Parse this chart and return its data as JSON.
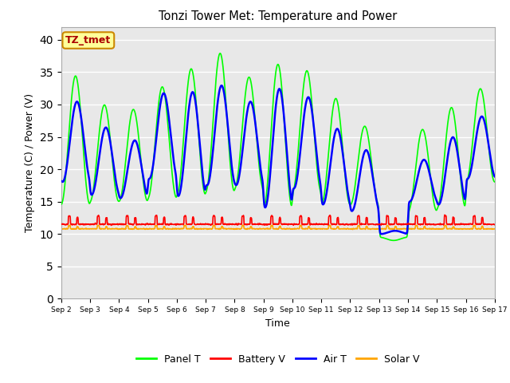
{
  "title": "Tonzi Tower Met: Temperature and Power",
  "xlabel": "Time",
  "ylabel": "Temperature (C) / Power (V)",
  "xlim_start": 0,
  "xlim_end": 15,
  "ylim": [
    0,
    42
  ],
  "yticks": [
    0,
    5,
    10,
    15,
    20,
    25,
    30,
    35,
    40
  ],
  "xtick_labels": [
    "Sep 2",
    "Sep 3",
    "Sep 4",
    "Sep 5",
    "Sep 6",
    "Sep 7",
    "Sep 8",
    "Sep 9",
    "Sep 10",
    "Sep 11",
    "Sep 12",
    "Sep 13",
    "Sep 14",
    "Sep 15",
    "Sep 16",
    "Sep 17"
  ],
  "panel_t_color": "#00FF00",
  "battery_v_color": "#FF0000",
  "air_t_color": "#0000FF",
  "solar_v_color": "#FFA500",
  "bg_color": "#E8E8E8",
  "annotation_text": "TZ_tmet",
  "annotation_fg": "#AA0000",
  "annotation_bg": "#FFFF99",
  "annotation_border": "#CC8800",
  "legend_entries": [
    "Panel T",
    "Battery V",
    "Air T",
    "Solar V"
  ],
  "grid_color": "#FFFFFF",
  "panel_t_linewidth": 1.2,
  "air_t_linewidth": 1.8,
  "battery_v_linewidth": 1.2,
  "solar_v_linewidth": 1.2,
  "panel_t_peaks": [
    34.5,
    30.0,
    29.3,
    32.8,
    35.6,
    38.0,
    34.3,
    36.3,
    35.3,
    31.0,
    26.7,
    9.0,
    26.2,
    29.6,
    32.5
  ],
  "panel_t_troughs": [
    14.5,
    15.0,
    15.0,
    15.5,
    16.0,
    16.5,
    17.0,
    14.0,
    16.5,
    14.5,
    14.5,
    9.5,
    13.5,
    14.0,
    18.0
  ],
  "air_t_peaks": [
    30.5,
    26.5,
    24.5,
    31.8,
    32.0,
    33.0,
    30.5,
    32.5,
    31.2,
    26.3,
    23.0,
    10.5,
    21.5,
    25.0,
    28.2
  ],
  "air_t_troughs": [
    18.0,
    16.0,
    15.5,
    18.5,
    15.8,
    17.5,
    17.5,
    14.0,
    17.0,
    14.5,
    13.5,
    10.0,
    15.0,
    14.5,
    18.5
  ],
  "battery_v_base": 11.5,
  "battery_v_spike": 1.3,
  "solar_v_base": 10.8,
  "solar_v_spike": 0.5
}
